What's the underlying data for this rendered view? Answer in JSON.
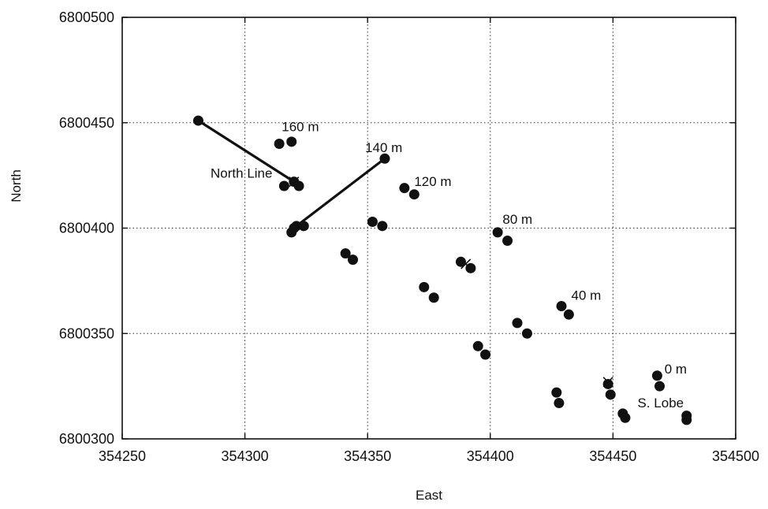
{
  "chart_data": {
    "type": "scatter",
    "title": "",
    "xlabel": "East",
    "ylabel": "North",
    "xlim": [
      354250,
      354500
    ],
    "ylim": [
      6800300,
      6800500
    ],
    "x_ticks": [
      354250,
      354300,
      354350,
      354400,
      354450,
      354500
    ],
    "y_ticks": [
      6800300,
      6800350,
      6800400,
      6800450,
      6800500
    ],
    "x_tick_labels": [
      "354250",
      "354300",
      "354350",
      "354400",
      "354450",
      "354500"
    ],
    "y_tick_labels": [
      "6800300",
      "6800350",
      "6800400",
      "6800450",
      "6800500"
    ],
    "grid": true,
    "points": [
      {
        "x": 354314,
        "y": 6800440
      },
      {
        "x": 354319,
        "y": 6800441
      },
      {
        "x": 354316,
        "y": 6800420
      },
      {
        "x": 354322,
        "y": 6800420
      },
      {
        "x": 354319,
        "y": 6800398
      },
      {
        "x": 354320,
        "y": 6800400
      },
      {
        "x": 354324,
        "y": 6800401
      },
      {
        "x": 354341,
        "y": 6800388
      },
      {
        "x": 354344,
        "y": 6800385
      },
      {
        "x": 354352,
        "y": 6800403
      },
      {
        "x": 354356,
        "y": 6800401
      },
      {
        "x": 354365,
        "y": 6800419
      },
      {
        "x": 354369,
        "y": 6800416
      },
      {
        "x": 354373,
        "y": 6800372
      },
      {
        "x": 354377,
        "y": 6800367
      },
      {
        "x": 354388,
        "y": 6800384
      },
      {
        "x": 354392,
        "y": 6800381
      },
      {
        "x": 354395,
        "y": 6800344
      },
      {
        "x": 354398,
        "y": 6800340
      },
      {
        "x": 354403,
        "y": 6800398
      },
      {
        "x": 354407,
        "y": 6800394
      },
      {
        "x": 354411,
        "y": 6800355
      },
      {
        "x": 354415,
        "y": 6800350
      },
      {
        "x": 354427,
        "y": 6800322
      },
      {
        "x": 354428,
        "y": 6800317
      },
      {
        "x": 354429,
        "y": 6800363
      },
      {
        "x": 354432,
        "y": 6800359
      },
      {
        "x": 354448,
        "y": 6800326
      },
      {
        "x": 354449,
        "y": 6800321
      },
      {
        "x": 354454,
        "y": 6800312
      },
      {
        "x": 354455,
        "y": 6800310
      },
      {
        "x": 354468,
        "y": 6800330
      },
      {
        "x": 354469,
        "y": 6800325
      },
      {
        "x": 354480,
        "y": 6800311
      },
      {
        "x": 354480,
        "y": 6800309
      }
    ],
    "cross_marks": [
      {
        "x": 354320,
        "y": 6800422
      },
      {
        "x": 354390,
        "y": 6800383
      },
      {
        "x": 354448,
        "y": 6800327
      }
    ],
    "lines": [
      {
        "name": "North Line",
        "from": {
          "x": 354281,
          "y": 6800451
        },
        "to": {
          "x": 354320,
          "y": 6800422
        }
      },
      {
        "name": "",
        "from": {
          "x": 354321,
          "y": 6800401
        },
        "to": {
          "x": 354357,
          "y": 6800433
        }
      }
    ],
    "annotations": [
      {
        "text": "160 m",
        "x": 354315,
        "y": 6800446
      },
      {
        "text": "140 m",
        "x": 354349,
        "y": 6800436
      },
      {
        "text": "120 m",
        "x": 354369,
        "y": 6800420
      },
      {
        "text": "North Line",
        "x": 354286,
        "y": 6800424
      },
      {
        "text": "80 m",
        "x": 354405,
        "y": 6800402
      },
      {
        "text": "40 m",
        "x": 354433,
        "y": 6800366
      },
      {
        "text": "0 m",
        "x": 354471,
        "y": 6800331
      },
      {
        "text": "S. Lobe",
        "x": 354460,
        "y": 6800315
      }
    ]
  }
}
